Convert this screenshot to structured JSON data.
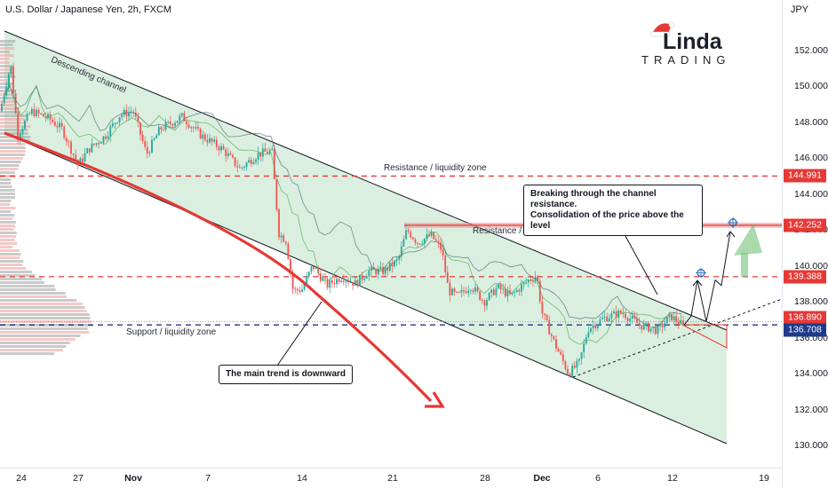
{
  "header": {
    "title": "U.S. Dollar / Japanese Yen, 2h, FXCM",
    "currency": "JPY"
  },
  "logo": {
    "word": "Linda",
    "initial": "L",
    "sub": "TRADING"
  },
  "colors": {
    "up": "#26a69a",
    "down": "#ef5350",
    "channel_fill": "#cfe9d6",
    "trend_curve": "#e53935",
    "navy": "#1e3a8a",
    "red": "#e53935"
  },
  "annotations": {
    "descending_channel": "Descending channel",
    "resistance_1": "Resistance / liquidity zone",
    "resistance_2": "Resistance / liquidity zone",
    "support": "Support / liquidity zone",
    "breakout_note": "Breaking through the channel resistance.\nConsolidation of the price above the level",
    "trend_note": "The main trend is downward"
  },
  "chart_data": {
    "type": "candlestick",
    "symbol": "USDJPY",
    "timeframe": "2h",
    "y_ticks": [
      130.0,
      132.0,
      134.0,
      136.0,
      138.0,
      140.0,
      142.0,
      144.0,
      146.0,
      148.0,
      150.0,
      152.0
    ],
    "x_ticks": [
      "24",
      "27",
      "Nov",
      "7",
      "14",
      "21",
      "28",
      "Dec",
      "6",
      "12",
      "19"
    ],
    "ylim": [
      129.0,
      153.5
    ],
    "levels": [
      {
        "label": "144.991",
        "value": 144.991,
        "style": "red-dashed"
      },
      {
        "label": "142.252",
        "value": 142.252,
        "style": "red-zone"
      },
      {
        "label": "139.388",
        "value": 139.388,
        "style": "red-dashed"
      },
      {
        "label": "136.890",
        "value": 136.89,
        "style": "red-dotted"
      },
      {
        "label": "136.708",
        "value": 136.708,
        "style": "navy-dashed"
      }
    ],
    "price_path": [
      [
        0,
        148.6
      ],
      [
        12,
        151.2
      ],
      [
        20,
        147.3
      ],
      [
        35,
        148.6
      ],
      [
        55,
        148.2
      ],
      [
        70,
        147.6
      ],
      [
        88,
        145.6
      ],
      [
        100,
        146.5
      ],
      [
        118,
        147.2
      ],
      [
        135,
        148.4
      ],
      [
        150,
        148.6
      ],
      [
        165,
        146.2
      ],
      [
        180,
        147.6
      ],
      [
        205,
        148.3
      ],
      [
        225,
        147.3
      ],
      [
        250,
        146.5
      ],
      [
        270,
        145.4
      ],
      [
        290,
        146.2
      ],
      [
        306,
        146.4
      ],
      [
        309,
        144.6
      ],
      [
        314,
        141.8
      ],
      [
        322,
        141.4
      ],
      [
        330,
        138.6
      ],
      [
        340,
        138.7
      ],
      [
        352,
        140.0
      ],
      [
        368,
        138.9
      ],
      [
        385,
        139.4
      ],
      [
        400,
        139.0
      ],
      [
        415,
        139.7
      ],
      [
        432,
        139.7
      ],
      [
        448,
        140.3
      ],
      [
        458,
        142.0
      ],
      [
        470,
        141.3
      ],
      [
        485,
        141.7
      ],
      [
        497,
        140.9
      ],
      [
        505,
        138.6
      ],
      [
        515,
        138.3
      ],
      [
        530,
        138.9
      ],
      [
        545,
        138.0
      ],
      [
        560,
        138.8
      ],
      [
        575,
        138.3
      ],
      [
        590,
        139.0
      ],
      [
        604,
        139.5
      ],
      [
        610,
        137.4
      ],
      [
        625,
        135.6
      ],
      [
        640,
        134.0
      ],
      [
        652,
        134.6
      ],
      [
        662,
        136.5
      ],
      [
        680,
        137.1
      ],
      [
        700,
        137.4
      ],
      [
        720,
        136.7
      ],
      [
        740,
        136.4
      ],
      [
        755,
        137.2
      ],
      [
        770,
        136.6
      ]
    ],
    "projection": [
      [
        770,
        136.7
      ],
      [
        778,
        137.2
      ],
      [
        785,
        139.2
      ],
      [
        795,
        136.9
      ],
      [
        805,
        139.2
      ],
      [
        812,
        138.9
      ],
      [
        822,
        141.9
      ]
    ],
    "targets": [
      139.6,
      142.4
    ]
  }
}
